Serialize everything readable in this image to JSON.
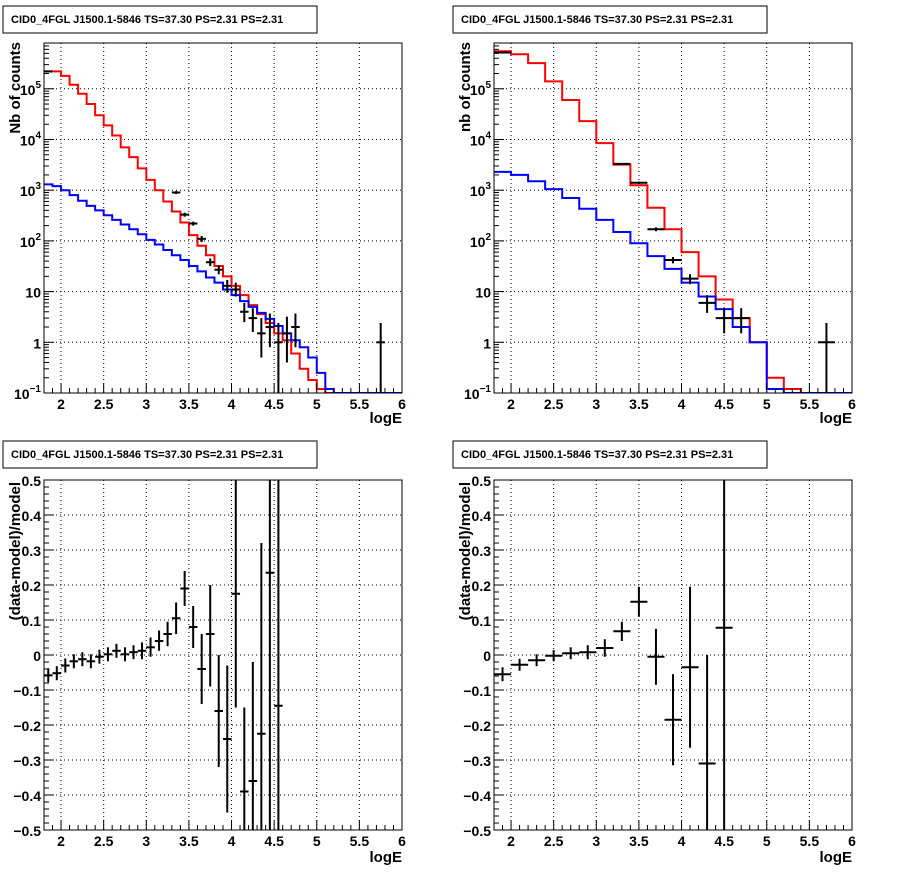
{
  "colors": {
    "data": "#000000",
    "total_model": "#ff0000",
    "source_model": "#0000ff",
    "grid": "#000000"
  },
  "chart_data": [
    {
      "type": "line",
      "title": "CID0_4FGL J1500.1-5846 TS=37.30 PS=2.31 PS=2.31",
      "xlabel": "logE",
      "ylabel": "Nb of counts",
      "xlim": [
        1.8,
        6.0
      ],
      "ylim": [
        0.1,
        800000
      ],
      "yscale": "log",
      "grid": true,
      "x_ticks": [
        "2",
        "2.5",
        "3",
        "3.5",
        "4",
        "4.5",
        "5",
        "5.5",
        "6"
      ],
      "y_ticks": [
        {
          "value": 0.1,
          "label": "10",
          "sup": "−1"
        },
        {
          "value": 1,
          "label": "1",
          "sup": ""
        },
        {
          "value": 10,
          "label": "10",
          "sup": ""
        },
        {
          "value": 100,
          "label": "10",
          "sup": "2"
        },
        {
          "value": 1000,
          "label": "10",
          "sup": "3"
        },
        {
          "value": 10000,
          "label": "10",
          "sup": "4"
        },
        {
          "value": 100000,
          "label": "10",
          "sup": "5"
        }
      ],
      "bin_edges": [
        1.8,
        1.9,
        2.0,
        2.1,
        2.2,
        2.3,
        2.4,
        2.5,
        2.6,
        2.7,
        2.8,
        2.9,
        3.0,
        3.1,
        3.2,
        3.3,
        3.4,
        3.5,
        3.6,
        3.7,
        3.8,
        3.9,
        4.0,
        4.1,
        4.2,
        4.3,
        4.4,
        4.5,
        4.6,
        4.7,
        4.8,
        4.9,
        5.0,
        5.1,
        5.2,
        5.3,
        5.4,
        5.5,
        5.6,
        5.7,
        5.8,
        5.9,
        6.0
      ],
      "series": [
        {
          "role": "total_model",
          "values": [
            220000,
            220000,
            180000,
            120000,
            80000,
            50000,
            30000,
            19000,
            12000,
            7000,
            4500,
            2700,
            1600,
            1000,
            600,
            380,
            230,
            130,
            80,
            52,
            32,
            20,
            13,
            8.5,
            5.4,
            3.6,
            2.4,
            1.5,
            1.1,
            0.6,
            0.3,
            0.18,
            0.12,
            0.1,
            0.1,
            0.1,
            0.1,
            0.1,
            0.1,
            0.1,
            0.1,
            0.1
          ]
        },
        {
          "role": "source_model",
          "values": [
            1300,
            1200,
            1000,
            800,
            620,
            490,
            400,
            320,
            260,
            210,
            170,
            135,
            105,
            85,
            66,
            52,
            42,
            32,
            25,
            19,
            15,
            11,
            8.5,
            6.5,
            5,
            3.8,
            2.9,
            2.1,
            1.5,
            1.1,
            0.8,
            0.5,
            0.25,
            0.12,
            0.1,
            0.1,
            0.1,
            0.1,
            0.1,
            0.1,
            0.1,
            0.1
          ]
        }
      ],
      "points": [
        {
          "x": 1.85,
          "y": 220000,
          "xerr": 0.05,
          "ylo": 219000,
          "yhi": 221000
        },
        {
          "x": 3.35,
          "y": 900,
          "xerr": 0.05,
          "ylo": 840,
          "yhi": 960
        },
        {
          "x": 3.45,
          "y": 330,
          "xerr": 0.05,
          "ylo": 300,
          "yhi": 360
        },
        {
          "x": 3.55,
          "y": 220,
          "xerr": 0.05,
          "ylo": 200,
          "yhi": 240
        },
        {
          "x": 3.65,
          "y": 110,
          "xerr": 0.05,
          "ylo": 95,
          "yhi": 125
        },
        {
          "x": 3.75,
          "y": 38,
          "xerr": 0.05,
          "ylo": 32,
          "yhi": 45
        },
        {
          "x": 3.85,
          "y": 27,
          "xerr": 0.05,
          "ylo": 22,
          "yhi": 33
        },
        {
          "x": 3.95,
          "y": 13,
          "xerr": 0.05,
          "ylo": 9.5,
          "yhi": 17
        },
        {
          "x": 4.05,
          "y": 11,
          "xerr": 0.05,
          "ylo": 8,
          "yhi": 15
        },
        {
          "x": 4.15,
          "y": 4,
          "xerr": 0.05,
          "ylo": 2.5,
          "yhi": 6
        },
        {
          "x": 4.25,
          "y": 3,
          "xerr": 0.05,
          "ylo": 1.6,
          "yhi": 4.7
        },
        {
          "x": 4.35,
          "y": 1.5,
          "xerr": 0.05,
          "ylo": 0.5,
          "yhi": 3
        },
        {
          "x": 4.45,
          "y": 2,
          "xerr": 0.05,
          "ylo": 0.8,
          "yhi": 3.7
        },
        {
          "x": 4.55,
          "y": 1,
          "xerr": 0.05,
          "ylo": 0.1,
          "yhi": 2.4
        },
        {
          "x": 4.65,
          "y": 1.5,
          "xerr": 0.05,
          "ylo": 0.4,
          "yhi": 3.2
        },
        {
          "x": 4.75,
          "y": 2,
          "xerr": 0.05,
          "ylo": 0.8,
          "yhi": 3.7
        },
        {
          "x": 5.75,
          "y": 1,
          "xerr": 0.05,
          "ylo": 0.1,
          "yhi": 2.4
        }
      ]
    },
    {
      "type": "line",
      "title": "CID0_4FGL J1500.1-5846 TS=37.30 PS=2.31 PS=2.31",
      "xlabel": "logE",
      "ylabel": "nb of counts",
      "xlim": [
        1.8,
        6.0
      ],
      "ylim": [
        0.1,
        800000
      ],
      "yscale": "log",
      "grid": true,
      "x_ticks": [
        "2",
        "2.5",
        "3",
        "3.5",
        "4",
        "4.5",
        "5",
        "5.5",
        "6"
      ],
      "y_ticks": [
        {
          "value": 0.1,
          "label": "10",
          "sup": "−1"
        },
        {
          "value": 1,
          "label": "1",
          "sup": ""
        },
        {
          "value": 10,
          "label": "10",
          "sup": ""
        },
        {
          "value": 100,
          "label": "10",
          "sup": "2"
        },
        {
          "value": 1000,
          "label": "10",
          "sup": "3"
        },
        {
          "value": 10000,
          "label": "10",
          "sup": "4"
        },
        {
          "value": 100000,
          "label": "10",
          "sup": "5"
        }
      ],
      "bin_edges": [
        1.8,
        2.0,
        2.2,
        2.4,
        2.6,
        2.8,
        3.0,
        3.2,
        3.4,
        3.6,
        3.8,
        4.0,
        4.2,
        4.4,
        4.6,
        4.8,
        5.0,
        5.2,
        5.4,
        5.6,
        5.8,
        6.0
      ],
      "series": [
        {
          "role": "total_model",
          "values": [
            550000,
            480000,
            320000,
            140000,
            60000,
            23000,
            8500,
            3200,
            1250,
            450,
            170,
            60,
            20,
            7,
            3,
            1,
            0.2,
            0.12,
            0.1,
            0.1,
            0.1
          ]
        },
        {
          "role": "source_model",
          "values": [
            2300,
            2000,
            1500,
            1050,
            700,
            430,
            260,
            150,
            90,
            50,
            28,
            15,
            8,
            4.5,
            2,
            1,
            0.12,
            0.1,
            0.1,
            0.1,
            0.1
          ]
        }
      ],
      "points": [
        {
          "x": 1.9,
          "y": 520000,
          "xerr": 0.1,
          "ylo": 519000,
          "yhi": 521000
        },
        {
          "x": 3.3,
          "y": 3300,
          "xerr": 0.1,
          "ylo": 3200,
          "yhi": 3400
        },
        {
          "x": 3.5,
          "y": 1400,
          "xerr": 0.1,
          "ylo": 1330,
          "yhi": 1470
        },
        {
          "x": 3.7,
          "y": 170,
          "xerr": 0.1,
          "ylo": 155,
          "yhi": 185
        },
        {
          "x": 3.9,
          "y": 42,
          "xerr": 0.1,
          "ylo": 36,
          "yhi": 48
        },
        {
          "x": 4.1,
          "y": 18,
          "xerr": 0.1,
          "ylo": 14,
          "yhi": 22
        },
        {
          "x": 4.3,
          "y": 6,
          "xerr": 0.1,
          "ylo": 3.8,
          "yhi": 8.5
        },
        {
          "x": 4.5,
          "y": 3,
          "xerr": 0.1,
          "ylo": 1.5,
          "yhi": 4.7
        },
        {
          "x": 4.7,
          "y": 3,
          "xerr": 0.1,
          "ylo": 1.5,
          "yhi": 4.7
        },
        {
          "x": 5.7,
          "y": 1,
          "xerr": 0.1,
          "ylo": 0.1,
          "yhi": 2.4
        }
      ]
    },
    {
      "type": "scatter",
      "title": "CID0_4FGL J1500.1-5846 TS=37.30 PS=2.31 PS=2.31",
      "xlabel": "logE",
      "ylabel": "(data-model)/model",
      "xlim": [
        1.8,
        6.0
      ],
      "ylim": [
        -0.5,
        0.5
      ],
      "yscale": "linear",
      "grid": true,
      "x_ticks": [
        "2",
        "2.5",
        "3",
        "3.5",
        "4",
        "4.5",
        "5",
        "5.5",
        "6"
      ],
      "y_ticks": [
        {
          "value": -0.5,
          "label": "−0.5",
          "sup": ""
        },
        {
          "value": -0.4,
          "label": "−0.4",
          "sup": ""
        },
        {
          "value": -0.3,
          "label": "−0.3",
          "sup": ""
        },
        {
          "value": -0.2,
          "label": "−0.2",
          "sup": ""
        },
        {
          "value": -0.1,
          "label": "−0.1",
          "sup": ""
        },
        {
          "value": 0,
          "label": "0",
          "sup": ""
        },
        {
          "value": 0.1,
          "label": "0.1",
          "sup": ""
        },
        {
          "value": 0.2,
          "label": "0.2",
          "sup": ""
        },
        {
          "value": 0.3,
          "label": "0.3",
          "sup": ""
        },
        {
          "value": 0.4,
          "label": "0.4",
          "sup": ""
        },
        {
          "value": 0.5,
          "label": "0.5",
          "sup": ""
        }
      ],
      "points": [
        {
          "x": 1.85,
          "y": -0.058,
          "xerr": 0.05,
          "ylo": -0.078,
          "yhi": -0.038
        },
        {
          "x": 1.95,
          "y": -0.052,
          "xerr": 0.05,
          "ylo": -0.072,
          "yhi": -0.032
        },
        {
          "x": 2.05,
          "y": -0.03,
          "xerr": 0.05,
          "ylo": -0.05,
          "yhi": -0.01
        },
        {
          "x": 2.15,
          "y": -0.018,
          "xerr": 0.05,
          "ylo": -0.038,
          "yhi": 0.002
        },
        {
          "x": 2.25,
          "y": -0.012,
          "xerr": 0.05,
          "ylo": -0.032,
          "yhi": 0.008
        },
        {
          "x": 2.35,
          "y": -0.018,
          "xerr": 0.05,
          "ylo": -0.038,
          "yhi": 0.002
        },
        {
          "x": 2.45,
          "y": -0.005,
          "xerr": 0.05,
          "ylo": -0.025,
          "yhi": 0.015
        },
        {
          "x": 2.55,
          "y": 0.002,
          "xerr": 0.05,
          "ylo": -0.018,
          "yhi": 0.022
        },
        {
          "x": 2.65,
          "y": 0.012,
          "xerr": 0.05,
          "ylo": -0.008,
          "yhi": 0.032
        },
        {
          "x": 2.75,
          "y": 0.002,
          "xerr": 0.05,
          "ylo": -0.018,
          "yhi": 0.022
        },
        {
          "x": 2.85,
          "y": 0.008,
          "xerr": 0.05,
          "ylo": -0.012,
          "yhi": 0.028
        },
        {
          "x": 2.95,
          "y": 0.012,
          "xerr": 0.05,
          "ylo": -0.012,
          "yhi": 0.036
        },
        {
          "x": 3.05,
          "y": 0.022,
          "xerr": 0.05,
          "ylo": -0.005,
          "yhi": 0.05
        },
        {
          "x": 3.15,
          "y": 0.04,
          "xerr": 0.05,
          "ylo": 0.012,
          "yhi": 0.07
        },
        {
          "x": 3.25,
          "y": 0.06,
          "xerr": 0.05,
          "ylo": 0.025,
          "yhi": 0.095
        },
        {
          "x": 3.35,
          "y": 0.105,
          "xerr": 0.05,
          "ylo": 0.06,
          "yhi": 0.15
        },
        {
          "x": 3.45,
          "y": 0.19,
          "xerr": 0.05,
          "ylo": 0.14,
          "yhi": 0.24
        },
        {
          "x": 3.55,
          "y": 0.08,
          "xerr": 0.05,
          "ylo": 0.02,
          "yhi": 0.14
        },
        {
          "x": 3.65,
          "y": -0.04,
          "xerr": 0.05,
          "ylo": -0.14,
          "yhi": 0.06
        },
        {
          "x": 3.75,
          "y": 0.06,
          "xerr": 0.05,
          "ylo": -0.09,
          "yhi": 0.2
        },
        {
          "x": 3.85,
          "y": -0.16,
          "xerr": 0.05,
          "ylo": -0.32,
          "yhi": 0.0
        },
        {
          "x": 3.95,
          "y": -0.24,
          "xerr": 0.05,
          "ylo": -0.45,
          "yhi": -0.03
        },
        {
          "x": 4.05,
          "y": 0.175,
          "xerr": 0.05,
          "ylo": -0.15,
          "yhi": 0.5
        },
        {
          "x": 4.15,
          "y": -0.39,
          "xerr": 0.05,
          "ylo": -0.5,
          "yhi": -0.15
        },
        {
          "x": 4.25,
          "y": -0.36,
          "xerr": 0.05,
          "ylo": -0.5,
          "yhi": -0.02
        },
        {
          "x": 4.35,
          "y": -0.225,
          "xerr": 0.05,
          "ylo": -0.5,
          "yhi": 0.32
        },
        {
          "x": 4.45,
          "y": 0.235,
          "xerr": 0.05,
          "ylo": -0.5,
          "yhi": 0.5
        },
        {
          "x": 4.55,
          "y": -0.145,
          "xerr": 0.05,
          "ylo": -0.5,
          "yhi": 0.5
        }
      ]
    },
    {
      "type": "scatter",
      "title": "CID0_4FGL J1500.1-5846 TS=37.30 PS=2.31 PS=2.31",
      "xlabel": "logE",
      "ylabel": "(data-model)/model",
      "xlim": [
        1.8,
        6.0
      ],
      "ylim": [
        -0.5,
        0.5
      ],
      "yscale": "linear",
      "grid": true,
      "x_ticks": [
        "2",
        "2.5",
        "3",
        "3.5",
        "4",
        "4.5",
        "5",
        "5.5",
        "6"
      ],
      "y_ticks": [
        {
          "value": -0.5,
          "label": "−0.5",
          "sup": ""
        },
        {
          "value": -0.4,
          "label": "−0.4",
          "sup": ""
        },
        {
          "value": -0.3,
          "label": "−0.3",
          "sup": ""
        },
        {
          "value": -0.2,
          "label": "−0.2",
          "sup": ""
        },
        {
          "value": -0.1,
          "label": "−0.1",
          "sup": ""
        },
        {
          "value": 0,
          "label": "0",
          "sup": ""
        },
        {
          "value": 0.1,
          "label": "0.1",
          "sup": ""
        },
        {
          "value": 0.2,
          "label": "0.2",
          "sup": ""
        },
        {
          "value": 0.3,
          "label": "0.3",
          "sup": ""
        },
        {
          "value": 0.4,
          "label": "0.4",
          "sup": ""
        },
        {
          "value": 0.5,
          "label": "0.5",
          "sup": ""
        }
      ],
      "points": [
        {
          "x": 1.9,
          "y": -0.055,
          "xerr": 0.1,
          "ylo": -0.075,
          "yhi": -0.035
        },
        {
          "x": 2.1,
          "y": -0.028,
          "xerr": 0.1,
          "ylo": -0.045,
          "yhi": -0.011
        },
        {
          "x": 2.3,
          "y": -0.015,
          "xerr": 0.1,
          "ylo": -0.032,
          "yhi": 0.002
        },
        {
          "x": 2.5,
          "y": -0.002,
          "xerr": 0.1,
          "ylo": -0.018,
          "yhi": 0.014
        },
        {
          "x": 2.7,
          "y": 0.005,
          "xerr": 0.1,
          "ylo": -0.012,
          "yhi": 0.022
        },
        {
          "x": 2.9,
          "y": 0.008,
          "xerr": 0.1,
          "ylo": -0.012,
          "yhi": 0.028
        },
        {
          "x": 3.1,
          "y": 0.02,
          "xerr": 0.1,
          "ylo": -0.005,
          "yhi": 0.045
        },
        {
          "x": 3.3,
          "y": 0.068,
          "xerr": 0.1,
          "ylo": 0.04,
          "yhi": 0.095
        },
        {
          "x": 3.5,
          "y": 0.152,
          "xerr": 0.1,
          "ylo": 0.11,
          "yhi": 0.195
        },
        {
          "x": 3.7,
          "y": -0.005,
          "xerr": 0.1,
          "ylo": -0.085,
          "yhi": 0.075
        },
        {
          "x": 3.9,
          "y": -0.185,
          "xerr": 0.1,
          "ylo": -0.315,
          "yhi": -0.055
        },
        {
          "x": 4.1,
          "y": -0.035,
          "xerr": 0.1,
          "ylo": -0.265,
          "yhi": 0.195
        },
        {
          "x": 4.3,
          "y": -0.31,
          "xerr": 0.1,
          "ylo": -0.5,
          "yhi": 0.0
        },
        {
          "x": 4.5,
          "y": 0.078,
          "xerr": 0.1,
          "ylo": -0.5,
          "yhi": 0.5
        }
      ]
    }
  ]
}
